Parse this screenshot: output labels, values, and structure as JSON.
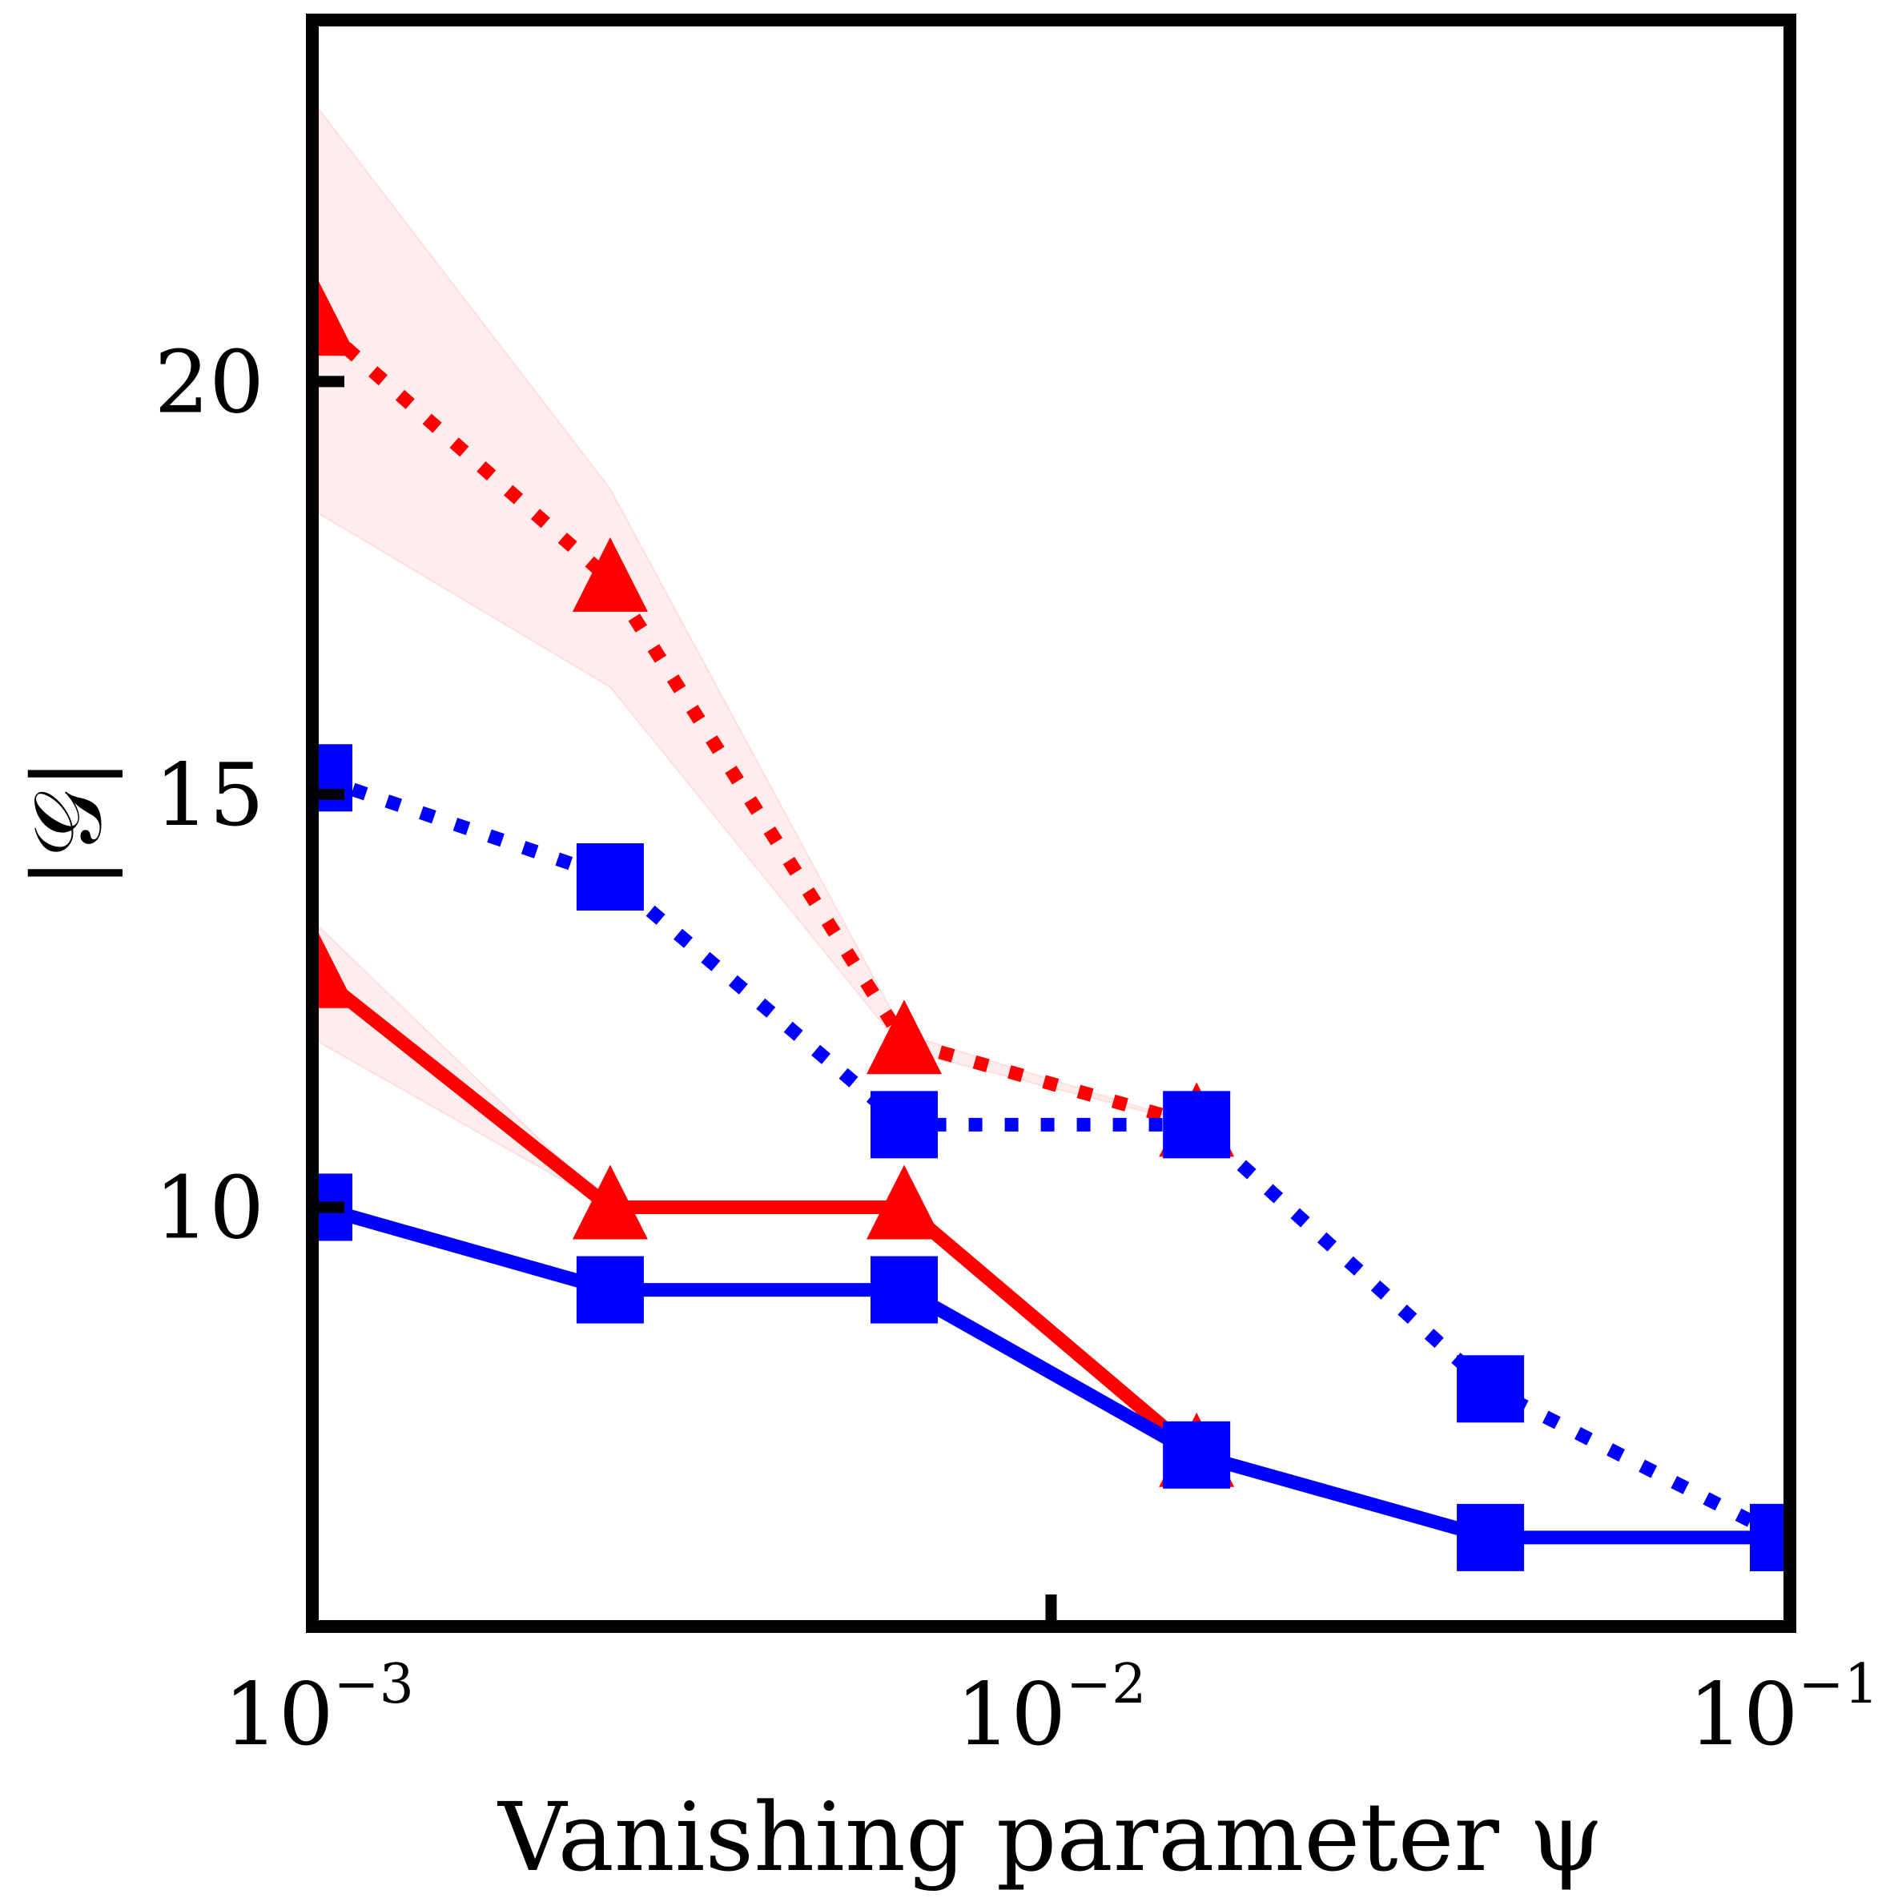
{
  "chart_data": {
    "type": "line",
    "xscale": "log",
    "xlim": [
      0.001,
      0.1
    ],
    "ylim": [
      5.0,
      24.3
    ],
    "xlabel": "Vanishing parameter ψ",
    "ylabel": "|𝒢|",
    "x_ticks": [
      {
        "value": 0.001,
        "base": "10",
        "exp": "−3"
      },
      {
        "value": 0.01,
        "base": "10",
        "exp": "−2"
      },
      {
        "value": 0.1,
        "base": "10",
        "exp": "−1"
      }
    ],
    "y_ticks": [
      {
        "value": 10,
        "label": "10"
      },
      {
        "value": 15,
        "label": "15"
      },
      {
        "value": 20,
        "label": "20"
      }
    ],
    "grid": false,
    "legend": "none",
    "series": [
      {
        "color": "#ff0000",
        "style": "dotted",
        "marker": "triangle",
        "points": [
          [
            0.001,
            20.7
          ],
          [
            0.0025,
            17.6
          ],
          [
            0.0063,
            12.0
          ],
          [
            0.0158,
            11.0
          ]
        ],
        "band": {
          "lower": [
            18.4,
            16.3,
            11.9,
            11.0
          ],
          "upper": [
            23.3,
            18.7,
            12.1,
            11.0
          ]
        }
      },
      {
        "color": "#0000ff",
        "style": "dotted",
        "marker": "square",
        "points": [
          [
            0.001,
            15.2
          ],
          [
            0.0025,
            14.0
          ],
          [
            0.0063,
            11.0
          ],
          [
            0.0158,
            11.0
          ],
          [
            0.0398,
            7.8
          ],
          [
            0.1,
            6.0
          ]
        ]
      },
      {
        "color": "#ff0000",
        "style": "solid",
        "marker": "triangle",
        "points": [
          [
            0.001,
            12.8
          ],
          [
            0.0025,
            10.0
          ],
          [
            0.0063,
            10.0
          ],
          [
            0.0158,
            7.0
          ]
        ],
        "band": {
          "lower": [
            12.0,
            10.0,
            10.0,
            7.0
          ],
          "upper": [
            13.4,
            10.0,
            10.0,
            7.0
          ]
        }
      },
      {
        "color": "#0000ff",
        "style": "solid",
        "marker": "square",
        "points": [
          [
            0.001,
            10.0
          ],
          [
            0.0025,
            9.0
          ],
          [
            0.0063,
            9.0
          ],
          [
            0.0158,
            7.0
          ],
          [
            0.0398,
            6.0
          ],
          [
            0.1,
            6.0
          ]
        ]
      }
    ]
  }
}
